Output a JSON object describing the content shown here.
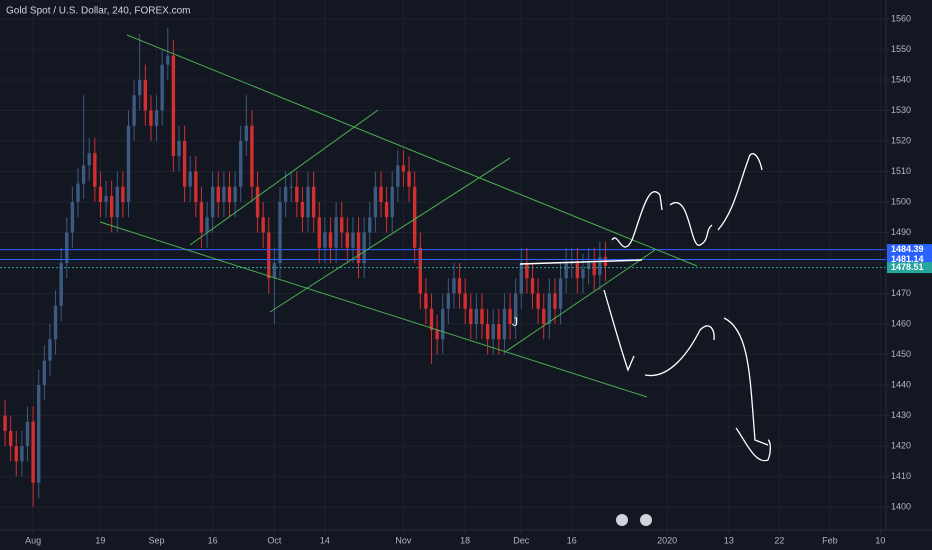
{
  "chart_data": {
    "type": "candlestick",
    "title": "Gold Spot / U.S. Dollar, 240, FOREX.com",
    "up_color": "#3d5a80",
    "down_color": "#d32f2f",
    "grid": true,
    "xlim": [
      -5.9,
      152
    ],
    "ylim": [
      1392.5,
      1566.2
    ],
    "xticks": [
      {
        "value": 0,
        "label": "Aug"
      },
      {
        "value": 12,
        "label": "19"
      },
      {
        "value": 22,
        "label": "Sep"
      },
      {
        "value": 32,
        "label": "16"
      },
      {
        "value": 43,
        "label": "Oct"
      },
      {
        "value": 52,
        "label": "14"
      },
      {
        "value": 66,
        "label": "Nov"
      },
      {
        "value": 77,
        "label": "18"
      },
      {
        "value": 87,
        "label": "Dec"
      },
      {
        "value": 96,
        "label": "16"
      },
      {
        "value": 113,
        "label": "2020"
      },
      {
        "value": 124,
        "label": "13"
      },
      {
        "value": 133,
        "label": "22"
      },
      {
        "value": 142,
        "label": "Feb"
      },
      {
        "value": 151,
        "label": "10"
      }
    ],
    "yticks": [
      1400,
      1410,
      1420,
      1430,
      1440,
      1450,
      1460,
      1470,
      1480,
      1490,
      1500,
      1510,
      1520,
      1530,
      1540,
      1550,
      1560
    ],
    "x": [
      -5,
      -4,
      -3,
      -2,
      -1,
      0,
      1,
      2,
      3,
      4,
      5,
      6,
      7,
      8,
      9,
      10,
      11,
      12,
      13,
      14,
      15,
      16,
      17,
      18,
      19,
      20,
      21,
      22,
      23,
      24,
      25,
      26,
      27,
      28,
      29,
      30,
      31,
      32,
      33,
      34,
      35,
      36,
      37,
      38,
      39,
      40,
      41,
      42,
      43,
      44,
      45,
      46,
      47,
      48,
      49,
      50,
      51,
      52,
      53,
      54,
      55,
      56,
      57,
      58,
      59,
      60,
      61,
      62,
      63,
      64,
      65,
      66,
      67,
      68,
      69,
      70,
      71,
      72,
      73,
      74,
      75,
      76,
      77,
      78,
      79,
      80,
      81,
      82,
      83,
      84,
      85,
      86,
      87,
      88,
      89,
      90,
      91,
      92,
      93,
      94,
      95,
      96,
      97,
      98,
      99,
      100,
      101,
      102
    ],
    "open": [
      1430,
      1425,
      1420,
      1415,
      1420,
      1428,
      1408,
      1440,
      1448,
      1455,
      1466,
      1480,
      1490,
      1500,
      1506,
      1512,
      1516,
      1505,
      1500,
      1502,
      1495,
      1505,
      1500,
      1525,
      1535,
      1540,
      1530,
      1525,
      1530,
      1545,
      1548,
      1515,
      1520,
      1505,
      1510,
      1500,
      1490,
      1495,
      1505,
      1500,
      1505,
      1500,
      1505,
      1520,
      1525,
      1505,
      1495,
      1490,
      1475,
      1480,
      1500,
      1505,
      1505,
      1500,
      1495,
      1505,
      1495,
      1485,
      1490,
      1485,
      1495,
      1490,
      1485,
      1490,
      1480,
      1490,
      1495,
      1505,
      1500,
      1495,
      1505,
      1512,
      1510,
      1505,
      1485,
      1470,
      1465,
      1458,
      1455,
      1465,
      1470,
      1475,
      1470,
      1465,
      1460,
      1465,
      1460,
      1455,
      1460,
      1455,
      1465,
      1460,
      1470,
      1480,
      1475,
      1470,
      1465,
      1460,
      1470,
      1465,
      1475,
      1480,
      1480,
      1475,
      1478,
      1480,
      1476,
      1482
    ],
    "high": [
      1435,
      1430,
      1425,
      1425,
      1433,
      1433,
      1445,
      1453,
      1460,
      1471,
      1485,
      1495,
      1505,
      1511,
      1535,
      1521,
      1521,
      1510,
      1507,
      1507,
      1510,
      1510,
      1530,
      1540,
      1555,
      1545,
      1535,
      1535,
      1550,
      1557,
      1553,
      1525,
      1525,
      1515,
      1515,
      1505,
      1500,
      1510,
      1510,
      1510,
      1510,
      1510,
      1525,
      1535,
      1530,
      1510,
      1500,
      1495,
      1485,
      1505,
      1510,
      1510,
      1510,
      1505,
      1510,
      1510,
      1500,
      1495,
      1495,
      1500,
      1500,
      1495,
      1495,
      1495,
      1495,
      1500,
      1510,
      1510,
      1505,
      1510,
      1517,
      1517,
      1515,
      1510,
      1490,
      1475,
      1470,
      1463,
      1470,
      1475,
      1480,
      1480,
      1475,
      1470,
      1470,
      1470,
      1465,
      1465,
      1465,
      1470,
      1470,
      1475,
      1485,
      1485,
      1480,
      1475,
      1470,
      1475,
      1475,
      1480,
      1485,
      1485,
      1485,
      1483,
      1485,
      1485,
      1487,
      1487
    ],
    "low": [
      1420,
      1415,
      1410,
      1410,
      1415,
      1400,
      1403,
      1435,
      1443,
      1450,
      1461,
      1475,
      1485,
      1495,
      1501,
      1507,
      1500,
      1495,
      1495,
      1490,
      1490,
      1495,
      1495,
      1520,
      1530,
      1525,
      1520,
      1520,
      1525,
      1540,
      1510,
      1510,
      1500,
      1500,
      1495,
      1485,
      1485,
      1490,
      1495,
      1495,
      1495,
      1495,
      1500,
      1515,
      1500,
      1490,
      1485,
      1470,
      1460,
      1475,
      1495,
      1500,
      1495,
      1490,
      1490,
      1490,
      1480,
      1480,
      1480,
      1480,
      1485,
      1480,
      1480,
      1475,
      1475,
      1485,
      1490,
      1495,
      1490,
      1490,
      1500,
      1505,
      1500,
      1480,
      1465,
      1460,
      1447,
      1450,
      1450,
      1460,
      1465,
      1465,
      1460,
      1455,
      1455,
      1455,
      1450,
      1450,
      1450,
      1450,
      1455,
      1455,
      1465,
      1470,
      1465,
      1460,
      1455,
      1455,
      1460,
      1460,
      1470,
      1475,
      1470,
      1470,
      1473,
      1471,
      1471,
      1474
    ],
    "close": [
      1425,
      1420,
      1415,
      1420,
      1428,
      1408,
      1440,
      1448,
      1455,
      1466,
      1480,
      1490,
      1500,
      1506,
      1512,
      1516,
      1505,
      1500,
      1502,
      1495,
      1505,
      1500,
      1525,
      1535,
      1540,
      1530,
      1525,
      1530,
      1545,
      1548,
      1515,
      1520,
      1505,
      1510,
      1500,
      1490,
      1495,
      1505,
      1500,
      1505,
      1500,
      1505,
      1520,
      1525,
      1505,
      1495,
      1490,
      1475,
      1480,
      1500,
      1505,
      1505,
      1500,
      1495,
      1505,
      1495,
      1485,
      1490,
      1485,
      1495,
      1490,
      1485,
      1490,
      1480,
      1490,
      1495,
      1505,
      1500,
      1495,
      1505,
      1512,
      1510,
      1505,
      1485,
      1470,
      1465,
      1458,
      1455,
      1465,
      1470,
      1475,
      1470,
      1465,
      1460,
      1465,
      1460,
      1455,
      1460,
      1455,
      1465,
      1460,
      1470,
      1480,
      1475,
      1470,
      1465,
      1460,
      1470,
      1465,
      1475,
      1480,
      1480,
      1475,
      1478,
      1480,
      1476,
      1482,
      1479
    ],
    "price_lines": [
      {
        "value": 1484.39,
        "color": "#2962ff"
      },
      {
        "value": 1481.14,
        "color": "#2962ff"
      },
      {
        "value": 1478.51,
        "color": "#26a69a"
      }
    ]
  }
}
